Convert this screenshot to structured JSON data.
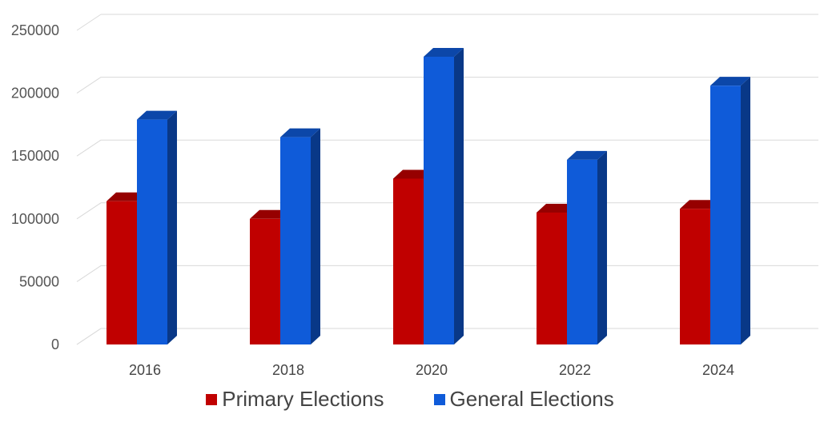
{
  "chart_data": {
    "type": "bar",
    "title": "",
    "xlabel": "",
    "ylabel": "",
    "categories": [
      "2016",
      "2018",
      "2020",
      "2022",
      "2024"
    ],
    "series": [
      {
        "name": "Primary Elections",
        "values": [
          114000,
          100000,
          132000,
          105000,
          108000
        ],
        "color": "#C00000"
      },
      {
        "name": "General Elections",
        "values": [
          179000,
          165000,
          229000,
          147000,
          206000
        ],
        "color": "#0F5BD9"
      }
    ],
    "ylim": [
      0,
      250000
    ],
    "yticks": [
      "0",
      "50000",
      "100000",
      "150000",
      "200000",
      "250000"
    ],
    "grid": true,
    "style": "3d-clustered-column",
    "legend_position": "bottom"
  }
}
